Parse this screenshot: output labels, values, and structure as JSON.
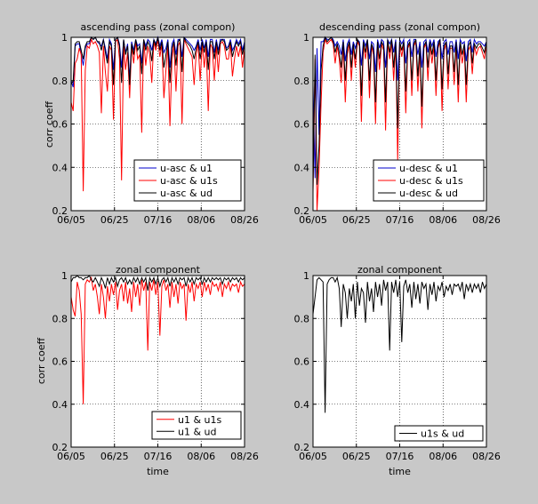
{
  "figure": {
    "background": "#c8c8c8"
  },
  "chart_data": [
    {
      "type": "line",
      "title": "ascending pass (zonal compon)",
      "xlabel": "",
      "ylabel": "corr coeff",
      "xticks": [
        "06/05",
        "06/25",
        "07/16",
        "08/06",
        "08/26"
      ],
      "yticks": [
        "0.2",
        "0.4",
        "0.6",
        "0.8",
        "1"
      ],
      "xlim": [
        "06/05",
        "08/28"
      ],
      "ylim": [
        0.2,
        1.0
      ],
      "grid": true,
      "legend_position": "bottom-right",
      "series": [
        {
          "name": "u-asc & u1",
          "color": "#0000cc",
          "y": [
            0.8,
            0.77,
            0.96,
            0.97,
            0.97,
            0.92,
            0.87,
            0.95,
            0.97,
            0.97,
            1.0,
            0.99,
            1.0,
            0.98,
            0.97,
            0.96,
            0.99,
            0.95,
            0.9,
            0.99,
            0.97,
            0.85,
            0.99,
            1.0,
            0.97,
            0.86,
            0.99,
            0.93,
            0.97,
            0.81,
            0.98,
            0.94,
            0.99,
            0.96,
            0.97,
            0.88,
            0.99,
            0.96,
            0.99,
            0.98,
            0.94,
            0.99,
            0.97,
            1.0,
            0.96,
            0.99,
            0.93,
            0.95,
            0.99,
            0.86,
            0.97,
            0.99,
            0.92,
            0.99,
            0.99,
            0.91,
            1.0,
            0.99,
            0.98,
            0.97,
            0.96,
            0.94,
            0.96,
            0.99,
            0.94,
            0.99,
            0.95,
            0.99,
            0.91,
            0.99,
            0.99,
            0.93,
            0.99,
            0.94,
            0.99,
            0.99,
            0.99,
            0.95,
            0.96,
            0.99,
            0.94,
            0.96,
            0.99,
            0.97,
            0.99,
            0.94,
            0.98
          ]
        },
        {
          "name": "u-asc & u1s",
          "color": "#ff0000",
          "y": [
            0.7,
            0.66,
            0.88,
            0.9,
            0.95,
            0.92,
            0.29,
            0.85,
            0.96,
            0.95,
            0.99,
            0.97,
            0.98,
            0.96,
            0.93,
            0.65,
            0.96,
            0.84,
            0.75,
            0.96,
            0.94,
            0.62,
            0.98,
            0.99,
            0.9,
            0.34,
            0.96,
            0.85,
            0.93,
            0.72,
            0.96,
            0.88,
            0.98,
            0.9,
            0.92,
            0.56,
            0.99,
            0.87,
            0.96,
            0.92,
            0.79,
            0.98,
            0.94,
            0.99,
            0.91,
            0.97,
            0.72,
            0.85,
            0.96,
            0.59,
            0.9,
            0.97,
            0.75,
            0.96,
            0.98,
            0.6,
            0.99,
            0.97,
            0.95,
            0.93,
            0.91,
            0.78,
            0.92,
            0.97,
            0.8,
            0.97,
            0.86,
            0.96,
            0.66,
            0.97,
            0.95,
            0.8,
            0.96,
            0.84,
            0.97,
            0.98,
            0.96,
            0.9,
            0.9,
            0.97,
            0.82,
            0.9,
            0.96,
            0.91,
            0.96,
            0.86,
            0.95
          ]
        },
        {
          "name": "u-asc & ud",
          "color": "#000000",
          "y": [
            0.78,
            0.8,
            0.97,
            0.98,
            0.98,
            0.94,
            0.9,
            0.96,
            0.98,
            0.98,
            1.0,
            0.99,
            1.0,
            0.98,
            0.98,
            0.94,
            0.99,
            0.93,
            0.88,
            0.98,
            0.96,
            0.78,
            0.99,
            1.0,
            0.96,
            0.79,
            0.99,
            0.92,
            0.96,
            0.78,
            0.97,
            0.92,
            0.99,
            0.94,
            0.96,
            0.83,
            0.99,
            0.94,
            0.98,
            0.96,
            0.89,
            0.99,
            0.96,
            1.0,
            0.94,
            0.98,
            0.86,
            0.92,
            0.98,
            0.79,
            0.95,
            0.98,
            0.87,
            0.98,
            0.99,
            0.84,
            1.0,
            0.98,
            0.97,
            0.96,
            0.94,
            0.9,
            0.95,
            0.98,
            0.9,
            0.98,
            0.93,
            0.98,
            0.85,
            0.98,
            0.98,
            0.9,
            0.98,
            0.92,
            0.98,
            0.99,
            0.98,
            0.94,
            0.95,
            0.98,
            0.91,
            0.95,
            0.98,
            0.96,
            0.98,
            0.92,
            0.97
          ]
        }
      ]
    },
    {
      "type": "line",
      "title": "descending pass (zonal compon)",
      "xlabel": "",
      "ylabel": "",
      "xticks": [
        "06/05",
        "06/25",
        "07/16",
        "08/06",
        "08/26"
      ],
      "yticks": [
        "0.2",
        "0.4",
        "0.6",
        "0.8",
        "1"
      ],
      "xlim": [
        "06/05",
        "08/28"
      ],
      "ylim": [
        0.2,
        1.0
      ],
      "grid": true,
      "legend_position": "bottom-right",
      "series": [
        {
          "name": "u-desc & u1",
          "color": "#0000cc",
          "y": [
            0.78,
            0.35,
            0.95,
            0.55,
            0.98,
            0.98,
            1.0,
            0.99,
            0.99,
            1.0,
            0.99,
            0.96,
            0.98,
            0.96,
            0.92,
            0.99,
            0.89,
            0.97,
            0.99,
            0.92,
            0.98,
            0.95,
            0.99,
            0.98,
            0.87,
            0.99,
            0.96,
            0.99,
            0.9,
            0.98,
            0.97,
            0.84,
            0.99,
            0.95,
            0.99,
            0.98,
            0.86,
            0.99,
            0.97,
            0.99,
            0.93,
            0.99,
            0.8,
            0.99,
            0.97,
            0.99,
            0.88,
            0.98,
            0.99,
            0.91,
            0.99,
            0.99,
            0.92,
            0.98,
            0.86,
            0.98,
            0.99,
            0.93,
            0.99,
            0.96,
            0.99,
            0.91,
            0.98,
            0.99,
            0.9,
            0.98,
            0.99,
            0.92,
            0.98,
            0.98,
            0.93,
            0.99,
            0.9,
            0.99,
            0.97,
            0.98,
            0.89,
            0.98,
            0.99,
            0.93,
            0.99,
            0.97,
            0.98,
            0.98,
            0.97,
            0.96,
            0.98
          ]
        },
        {
          "name": "u-desc & u1s",
          "color": "#ff0000",
          "y": [
            0.28,
            0.9,
            0.2,
            0.4,
            0.7,
            0.93,
            0.99,
            0.97,
            0.98,
            0.99,
            0.97,
            0.88,
            0.96,
            0.9,
            0.79,
            0.97,
            0.7,
            0.92,
            0.97,
            0.8,
            0.96,
            0.86,
            0.98,
            0.96,
            0.61,
            0.97,
            0.9,
            0.98,
            0.72,
            0.96,
            0.92,
            0.6,
            0.97,
            0.85,
            0.97,
            0.94,
            0.57,
            0.98,
            0.9,
            0.98,
            0.8,
            0.97,
            0.43,
            0.97,
            0.91,
            0.97,
            0.65,
            0.95,
            0.97,
            0.73,
            0.96,
            0.98,
            0.75,
            0.94,
            0.58,
            0.95,
            0.97,
            0.8,
            0.97,
            0.88,
            0.96,
            0.73,
            0.95,
            0.98,
            0.66,
            0.94,
            0.97,
            0.76,
            0.95,
            0.95,
            0.78,
            0.97,
            0.7,
            0.96,
            0.88,
            0.95,
            0.7,
            0.94,
            0.96,
            0.83,
            0.96,
            0.92,
            0.95,
            0.96,
            0.93,
            0.9,
            0.97
          ]
        },
        {
          "name": "u-desc & ud",
          "color": "#000000",
          "y": [
            0.3,
            0.92,
            0.32,
            0.5,
            0.85,
            0.96,
            1.0,
            0.98,
            0.99,
            1.0,
            0.98,
            0.93,
            0.97,
            0.93,
            0.86,
            0.98,
            0.8,
            0.95,
            0.98,
            0.86,
            0.97,
            0.9,
            0.99,
            0.97,
            0.73,
            0.98,
            0.93,
            0.99,
            0.8,
            0.97,
            0.94,
            0.7,
            0.98,
            0.9,
            0.98,
            0.96,
            0.7,
            0.99,
            0.93,
            0.99,
            0.86,
            0.98,
            0.58,
            0.98,
            0.94,
            0.98,
            0.75,
            0.96,
            0.98,
            0.8,
            0.97,
            0.99,
            0.82,
            0.96,
            0.68,
            0.96,
            0.98,
            0.86,
            0.98,
            0.92,
            0.98,
            0.8,
            0.96,
            0.99,
            0.76,
            0.96,
            0.98,
            0.83,
            0.96,
            0.96,
            0.84,
            0.98,
            0.78,
            0.98,
            0.92,
            0.97,
            0.78,
            0.96,
            0.98,
            0.88,
            0.97,
            0.95,
            0.97,
            0.97,
            0.95,
            0.93,
            0.98
          ]
        }
      ]
    },
    {
      "type": "line",
      "title": "zonal component",
      "xlabel": "time",
      "ylabel": "corr coeff",
      "xticks": [
        "06/05",
        "06/25",
        "07/16",
        "08/06",
        "08/26"
      ],
      "yticks": [
        "0.2",
        "0.4",
        "0.6",
        "0.8",
        "1"
      ],
      "xlim": [
        "06/05",
        "08/28"
      ],
      "ylim": [
        0.2,
        1.0
      ],
      "grid": true,
      "legend_position": "bottom-right",
      "series": [
        {
          "name": "u1 & u1s",
          "color": "#ff0000",
          "y": [
            0.9,
            0.84,
            0.81,
            0.97,
            0.93,
            0.82,
            0.4,
            0.96,
            0.98,
            0.97,
            0.99,
            0.93,
            0.96,
            0.9,
            0.82,
            0.96,
            0.9,
            0.8,
            0.95,
            0.88,
            0.96,
            0.91,
            0.97,
            0.84,
            0.93,
            0.96,
            0.88,
            0.97,
            0.87,
            0.94,
            0.83,
            0.97,
            0.9,
            0.96,
            0.86,
            0.98,
            0.93,
            0.97,
            0.65,
            0.97,
            0.93,
            0.98,
            0.91,
            0.97,
            0.72,
            0.95,
            0.98,
            0.93,
            0.96,
            0.85,
            0.97,
            0.9,
            0.96,
            0.87,
            0.97,
            0.94,
            0.96,
            0.79,
            0.96,
            0.92,
            0.97,
            0.88,
            0.96,
            0.94,
            0.97,
            0.9,
            0.97,
            0.93,
            0.96,
            0.91,
            0.97,
            0.95,
            0.96,
            0.93,
            0.97,
            0.9,
            0.96,
            0.94,
            0.97,
            0.93,
            0.96,
            0.95,
            0.96,
            0.92,
            0.97,
            0.95,
            0.96
          ]
        },
        {
          "name": "u1 & ud",
          "color": "#000000",
          "y": [
            0.97,
            0.99,
            0.99,
            1.0,
            0.99,
            0.99,
            0.98,
            0.99,
            0.99,
            1.0,
            0.98,
            0.97,
            0.99,
            0.97,
            0.95,
            0.99,
            0.97,
            0.94,
            0.99,
            0.96,
            0.99,
            0.97,
            0.99,
            0.95,
            0.98,
            0.99,
            0.97,
            0.99,
            0.96,
            0.98,
            0.96,
            0.99,
            0.97,
            0.99,
            0.96,
            0.99,
            0.97,
            0.99,
            0.93,
            0.99,
            0.97,
            0.99,
            0.96,
            0.99,
            0.95,
            0.98,
            0.99,
            0.97,
            0.99,
            0.95,
            0.99,
            0.97,
            0.99,
            0.96,
            0.99,
            0.98,
            0.99,
            0.95,
            0.99,
            0.97,
            0.99,
            0.96,
            0.99,
            0.98,
            0.99,
            0.96,
            0.99,
            0.97,
            0.99,
            0.97,
            0.99,
            0.98,
            0.99,
            0.98,
            0.99,
            0.96,
            0.99,
            0.98,
            0.99,
            0.97,
            0.99,
            0.98,
            0.99,
            0.97,
            0.99,
            0.98,
            0.99
          ]
        }
      ]
    },
    {
      "type": "line",
      "title": "zonal component",
      "xlabel": "time",
      "ylabel": "",
      "xticks": [
        "06/05",
        "06/25",
        "07/16",
        "08/06",
        "08/26"
      ],
      "yticks": [
        "0.2",
        "0.4",
        "0.6",
        "0.8",
        "1"
      ],
      "xlim": [
        "06/05",
        "08/28"
      ],
      "ylim": [
        0.2,
        1.0
      ],
      "grid": true,
      "legend_position": "bottom-right",
      "series": [
        {
          "name": "u1s & ud",
          "color": "#000000",
          "y": [
            0.82,
            0.9,
            0.98,
            0.99,
            0.98,
            0.97,
            0.36,
            0.96,
            0.98,
            0.99,
            0.99,
            0.97,
            0.99,
            0.94,
            0.76,
            0.96,
            0.92,
            0.8,
            0.94,
            0.88,
            0.96,
            0.8,
            0.97,
            0.86,
            0.94,
            0.92,
            0.78,
            0.97,
            0.88,
            0.94,
            0.83,
            0.97,
            0.9,
            0.96,
            0.86,
            0.98,
            0.93,
            0.97,
            0.65,
            0.97,
            0.92,
            0.98,
            0.9,
            0.97,
            0.69,
            0.95,
            0.98,
            0.92,
            0.96,
            0.85,
            0.97,
            0.89,
            0.96,
            0.87,
            0.97,
            0.94,
            0.96,
            0.84,
            0.96,
            0.91,
            0.97,
            0.88,
            0.95,
            0.93,
            0.97,
            0.9,
            0.95,
            0.93,
            0.96,
            0.91,
            0.96,
            0.95,
            0.96,
            0.93,
            0.97,
            0.89,
            0.96,
            0.93,
            0.96,
            0.92,
            0.96,
            0.94,
            0.96,
            0.92,
            0.97,
            0.94,
            0.96
          ]
        }
      ]
    }
  ]
}
